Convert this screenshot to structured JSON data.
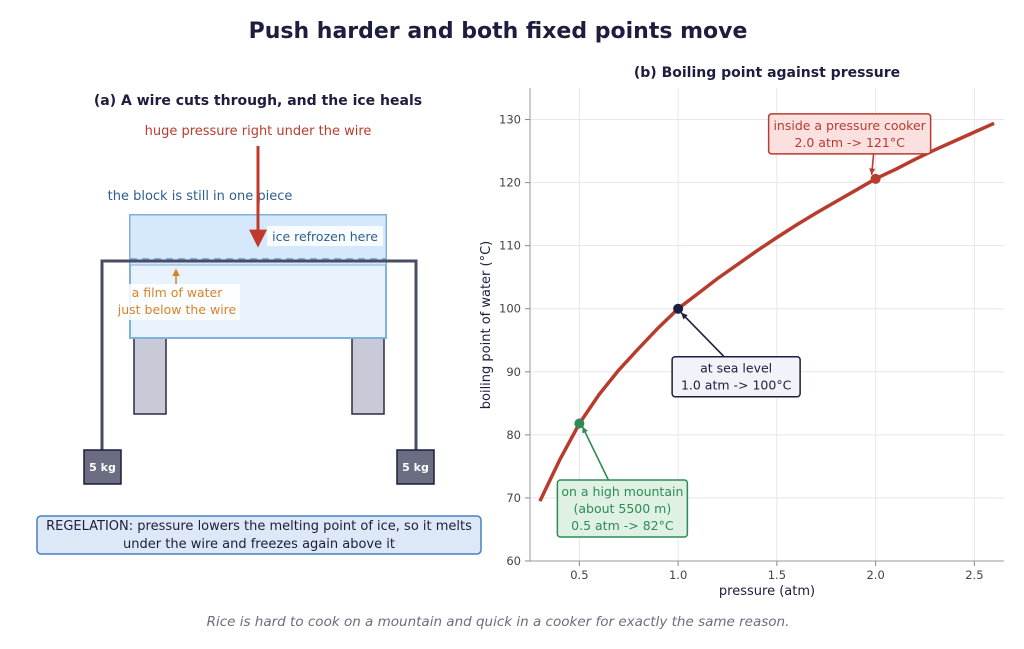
{
  "title": "Push harder and both fixed points move",
  "caption": "Rice is hard to cook on a mountain and quick in a cooker for exactly the same reason.",
  "panel_a": {
    "title": "(a) A wire cuts through, and the ice heals",
    "pressure_label": "huge pressure right under the wire",
    "block_label": "the block is still in one piece",
    "refrozen_label": "ice refrozen here",
    "film_label_line1": "a film of water",
    "film_label_line2": "just below the wire",
    "weight_left": "5 kg",
    "weight_right": "5 kg",
    "summary_line1": "REGELATION: pressure lowers the melting point of ice, so it melts",
    "summary_line2": "under the wire and freezes again above it"
  },
  "chart_data": {
    "type": "line",
    "title": "(b) Boiling point against pressure",
    "xlabel": "pressure  (atm)",
    "ylabel": "boiling point of water  (°C)",
    "xlim": [
      0.25,
      2.65
    ],
    "ylim": [
      60,
      135
    ],
    "x_ticks": [
      0.5,
      1.0,
      1.5,
      2.0,
      2.5
    ],
    "x_tick_labels": [
      "0.5",
      "1.0",
      "1.5",
      "2.0",
      "2.5"
    ],
    "y_ticks": [
      60,
      70,
      80,
      90,
      100,
      110,
      120,
      130
    ],
    "y_tick_labels": [
      "60",
      "70",
      "80",
      "90",
      "100",
      "110",
      "120",
      "130"
    ],
    "grid": true,
    "series": [
      {
        "color": "#b83c2e",
        "x": [
          0.3,
          0.4,
          0.5,
          0.6,
          0.7,
          0.8,
          0.9,
          1.0,
          1.1,
          1.2,
          1.3,
          1.4,
          1.5,
          1.6,
          1.7,
          1.8,
          1.9,
          2.0,
          2.1,
          2.2,
          2.3,
          2.4,
          2.5,
          2.6
        ],
        "y": [
          69.5,
          76.0,
          81.8,
          86.4,
          90.3,
          93.7,
          97.0,
          100.0,
          102.4,
          104.8,
          107.0,
          109.2,
          111.3,
          113.3,
          115.2,
          117.0,
          118.8,
          120.6,
          122.1,
          123.7,
          125.2,
          126.6,
          128.0,
          129.4
        ]
      }
    ],
    "points": [
      {
        "x": 0.5,
        "y": 81.8,
        "color": "#2e8b57",
        "fill": "#dff1e2",
        "label_lines": [
          "on a high mountain",
          "(about 5500 m)",
          "0.5 atm  ->  82°C"
        ]
      },
      {
        "x": 1.0,
        "y": 100.0,
        "color": "#1d1d3f",
        "fill": "#f2f3f8",
        "label_lines": [
          "at sea level",
          "1.0 atm  ->  100°C"
        ]
      },
      {
        "x": 2.0,
        "y": 120.6,
        "color": "#b83c2e",
        "fill": "#fbe0e0",
        "label_lines": [
          "inside a pressure cooker",
          "2.0 atm  ->  121°C"
        ]
      }
    ]
  }
}
